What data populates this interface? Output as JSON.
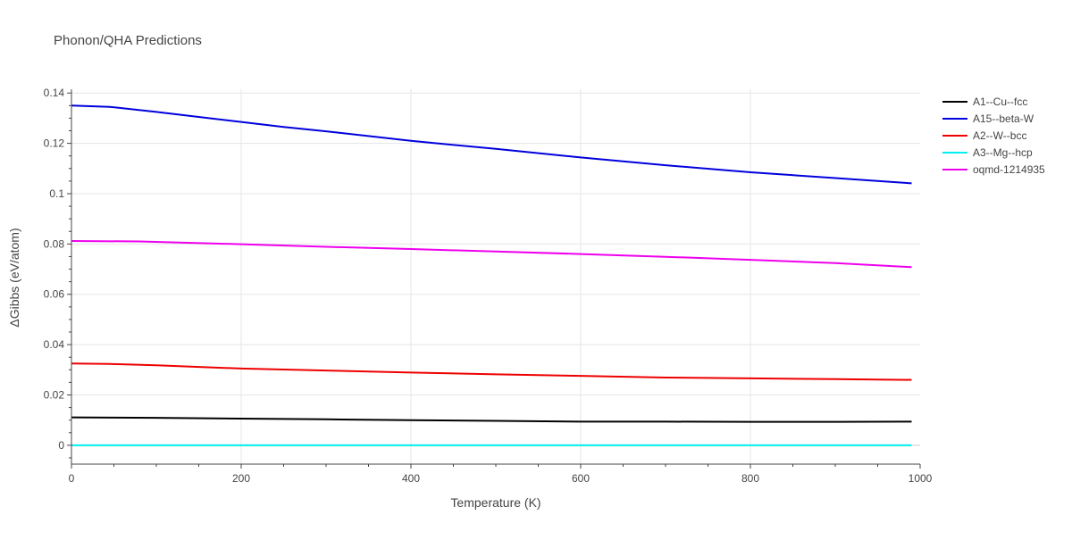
{
  "chart_data": {
    "type": "line",
    "title": "Phonon/QHA Predictions",
    "xlabel": "Temperature (K)",
    "ylabel": "ΔGibbs (eV/atom)",
    "xlim": [
      0,
      1000
    ],
    "ylim": [
      -0.0075,
      0.1415
    ],
    "xticks": [
      0,
      200,
      400,
      600,
      800,
      1000
    ],
    "xtick_labels": [
      "0",
      "200",
      "400",
      "600",
      "800",
      "1000"
    ],
    "yticks": [
      0,
      0.02,
      0.04,
      0.06,
      0.08,
      0.1,
      0.12,
      0.14
    ],
    "ytick_labels": [
      "0",
      "0.02",
      "0.04",
      "0.06",
      "0.08",
      "0.1",
      "0.12",
      "0.14"
    ],
    "grid": true,
    "legend_position": "top-right",
    "series": [
      {
        "name": "A1--Cu--fcc",
        "color": "#000000",
        "x": [
          0,
          50,
          100,
          200,
          300,
          400,
          500,
          600,
          700,
          800,
          900,
          990
        ],
        "y": [
          0.0111,
          0.011,
          0.0109,
          0.0106,
          0.0103,
          0.01,
          0.0097,
          0.0094,
          0.0094,
          0.0093,
          0.0093,
          0.0094
        ]
      },
      {
        "name": "A15--beta-W",
        "color": "#0000dd",
        "x": [
          0,
          45,
          100,
          200,
          250,
          300,
          400,
          500,
          600,
          700,
          800,
          900,
          990
        ],
        "y": [
          0.135,
          0.1345,
          0.1325,
          0.1285,
          0.1265,
          0.1248,
          0.121,
          0.1178,
          0.1144,
          0.1113,
          0.1085,
          0.1062,
          0.1041
        ]
      },
      {
        "name": "A2--W--bcc",
        "color": "#ee0000",
        "x": [
          0,
          45,
          100,
          200,
          300,
          400,
          500,
          600,
          700,
          800,
          900,
          990
        ],
        "y": [
          0.0325,
          0.0323,
          0.0318,
          0.0305,
          0.0297,
          0.0289,
          0.0282,
          0.0276,
          0.0269,
          0.0266,
          0.0263,
          0.026
        ]
      },
      {
        "name": "A3--Mg--hcp",
        "color": "#00eeee",
        "x": [
          0,
          200,
          400,
          600,
          800,
          990
        ],
        "y": [
          0,
          0,
          0,
          0,
          0,
          0
        ]
      },
      {
        "name": "oqmd-1214935",
        "color": "#ee00ee",
        "x": [
          0,
          80,
          200,
          300,
          400,
          500,
          600,
          700,
          800,
          900,
          990
        ],
        "y": [
          0.0812,
          0.081,
          0.0799,
          0.0789,
          0.078,
          0.077,
          0.076,
          0.0749,
          0.0737,
          0.0724,
          0.0708
        ]
      }
    ]
  }
}
